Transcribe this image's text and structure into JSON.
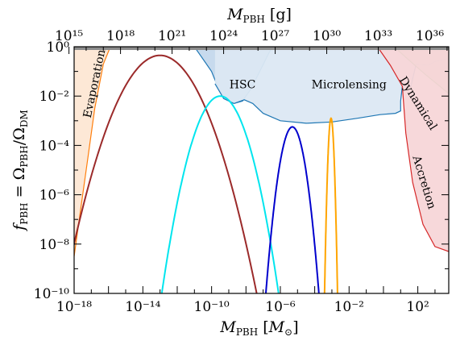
{
  "chart_data": {
    "type": "line",
    "title": "",
    "xlabel": "M_PBH [M_⊙]",
    "x2label": "M_PBH [g]",
    "ylabel": "f_PBH = Ω_PBH/Ω_DM",
    "xscale": "log",
    "yscale": "log",
    "xlim": [
      -18,
      3.8
    ],
    "ylim": [
      -10,
      0
    ],
    "x_ticks": [
      {
        "exp": -18,
        "label": "10⁻¹⁸"
      },
      {
        "exp": -14,
        "label": "10⁻¹⁴"
      },
      {
        "exp": -10,
        "label": "10⁻¹⁰"
      },
      {
        "exp": -6,
        "label": "10⁻⁶"
      },
      {
        "exp": -2,
        "label": "10⁻²"
      },
      {
        "exp": 2,
        "label": "10²"
      }
    ],
    "y_ticks": [
      {
        "exp": 0,
        "label": "10⁰"
      },
      {
        "exp": -2,
        "label": "10⁻²"
      },
      {
        "exp": -4,
        "label": "10⁻⁴"
      },
      {
        "exp": -6,
        "label": "10⁻⁶"
      },
      {
        "exp": -8,
        "label": "10⁻⁸"
      },
      {
        "exp": -10,
        "label": "10⁻¹⁰"
      }
    ],
    "x2_ticks": [
      {
        "exp": 15,
        "label": "10¹⁵"
      },
      {
        "exp": 18,
        "label": "10¹⁸"
      },
      {
        "exp": 21,
        "label": "10²¹"
      },
      {
        "exp": 24,
        "label": "10²⁴"
      },
      {
        "exp": 27,
        "label": "10²⁷"
      },
      {
        "exp": 30,
        "label": "10³⁰"
      },
      {
        "exp": 33,
        "label": "10³³"
      },
      {
        "exp": 36,
        "label": "10³⁶"
      }
    ],
    "regions": [
      {
        "name": "Evaporation",
        "color": "#ff7f0e",
        "fill": "#fde7d4",
        "boundary": [
          [
            -18,
            -8.5
          ],
          [
            -17.6,
            -6.5
          ],
          [
            -17.2,
            -4.5
          ],
          [
            -16.8,
            -2.5
          ],
          [
            -16.3,
            -0.7
          ],
          [
            -15.8,
            0.15
          ]
        ]
      },
      {
        "name": "HSC",
        "color": "#1f77b4",
        "fill": "#c4d8ec",
        "boundary": [
          [
            -11.2,
            0.2
          ],
          [
            -10.6,
            -0.4
          ],
          [
            -10,
            -1
          ],
          [
            -9.6,
            -1.7
          ],
          [
            -9.2,
            -2.1
          ],
          [
            -8.7,
            -2.3
          ],
          [
            -8.2,
            -2.2
          ],
          [
            -7.7,
            -1.7
          ],
          [
            -7.2,
            -1
          ],
          [
            -6.7,
            -0.3
          ],
          [
            -6.3,
            0.2
          ]
        ]
      },
      {
        "name": "Microlensing",
        "color": "#1f77b4",
        "fill": "#dce8f3",
        "boundary": [
          [
            -9.8,
            -1.5
          ],
          [
            -9.3,
            -2.1
          ],
          [
            -8.7,
            -2.3
          ],
          [
            -8.1,
            -2.15
          ],
          [
            -7.6,
            -2.3
          ],
          [
            -7,
            -2.7
          ],
          [
            -6,
            -3
          ],
          [
            -4.5,
            -3.1
          ],
          [
            -3,
            -3.05
          ],
          [
            -1.5,
            -2.9
          ],
          [
            -0.2,
            -2.75
          ],
          [
            0.7,
            -2.7
          ],
          [
            1,
            -2.6
          ],
          [
            1,
            -2.2
          ],
          [
            1.1,
            -1.6
          ],
          [
            1.6,
            -1.6
          ],
          [
            1.9,
            -0.7
          ],
          [
            2.6,
            -0.75
          ],
          [
            3,
            -0.6
          ],
          [
            3.6,
            -0.5
          ],
          [
            3.8,
            -0.5
          ]
        ]
      },
      {
        "name": "Dynamical",
        "color": "#2ca02c",
        "fill": "#c9d4c0",
        "boundary": [
          [
            0.3,
            0.2
          ],
          [
            1.5,
            -0.55
          ],
          [
            2.4,
            -1.1
          ],
          [
            3.1,
            -1.5
          ],
          [
            3.8,
            -1.9
          ]
        ]
      },
      {
        "name": "Accretion",
        "color": "#d62728",
        "fill": "#f7d6d8",
        "boundary": [
          [
            -0.5,
            0.15
          ],
          [
            0.4,
            -0.75
          ],
          [
            1.1,
            -1.6
          ],
          [
            1.3,
            -3.5
          ],
          [
            1.7,
            -5.5
          ],
          [
            2.3,
            -7.2
          ],
          [
            3,
            -8.1
          ],
          [
            3.8,
            -8.3
          ]
        ]
      }
    ],
    "series": [
      {
        "color": "#9b2a2a",
        "peak_x": -13,
        "peak_y": -0.35,
        "sigma": 1.28,
        "x": [
          -14.78,
          -14.5,
          -14.0,
          -13.5,
          -13.0,
          -12.5,
          -12.0,
          -11.5,
          -11.0,
          -10.5,
          -10.3
        ],
        "y": [
          -10,
          -7.5,
          -3.3,
          -0.9,
          -0.35,
          -0.75,
          -2.1,
          -4.0,
          -6.6,
          -9.5,
          -10
        ]
      },
      {
        "color": "#00e5ee",
        "peak_x": -9.5,
        "peak_y": -2.0,
        "sigma": 0.85,
        "x": [
          -11.05,
          -10.8,
          -10.5,
          -10.2,
          -9.9,
          -9.6,
          -9.3,
          -9.0,
          -8.7,
          -8.5,
          -8.1
        ],
        "y": [
          -10,
          -7.4,
          -4.8,
          -3.4,
          -2.4,
          -2.0,
          -2.1,
          -2.8,
          -4.7,
          -6.4,
          -10
        ]
      },
      {
        "color": "#0000cd",
        "peak_x": -5.3,
        "peak_y": -3.25,
        "sigma": 0.42,
        "x": [
          -6.05,
          -5.9,
          -5.75,
          -5.6,
          -5.45,
          -5.3,
          -5.15,
          -5.0,
          -4.85,
          -4.7,
          -4.6
        ],
        "y": [
          -10,
          -7.5,
          -5.5,
          -4.1,
          -3.4,
          -3.25,
          -3.4,
          -4.1,
          -5.5,
          -8.0,
          -10
        ]
      },
      {
        "color": "#ffa500",
        "peak_x": -3.05,
        "peak_y": -2.9,
        "sigma": 0.1,
        "x": [
          -3.25,
          -3.2,
          -3.15,
          -3.1,
          -3.05,
          -3.0,
          -2.95,
          -2.9,
          -2.85
        ],
        "y": [
          -10,
          -7.5,
          -5.5,
          -3.5,
          -2.9,
          -3.5,
          -5.5,
          -7.5,
          -10
        ]
      }
    ],
    "annotations": [
      {
        "text": "Evaporation",
        "x": -16.8,
        "y": -1.5,
        "rotation": -78
      },
      {
        "text": "HSC",
        "x": -8.2,
        "y": -1.55,
        "rotation": 0
      },
      {
        "text": "Microlensing",
        "x": -2.0,
        "y": -1.55,
        "rotation": 0
      },
      {
        "text": "Dynamical",
        "x": 2.0,
        "y": -2.3,
        "rotation": 58
      },
      {
        "text": "Accretion",
        "x": 2.35,
        "y": -5.5,
        "rotation": 73
      }
    ],
    "grid": false,
    "legend": "none"
  }
}
